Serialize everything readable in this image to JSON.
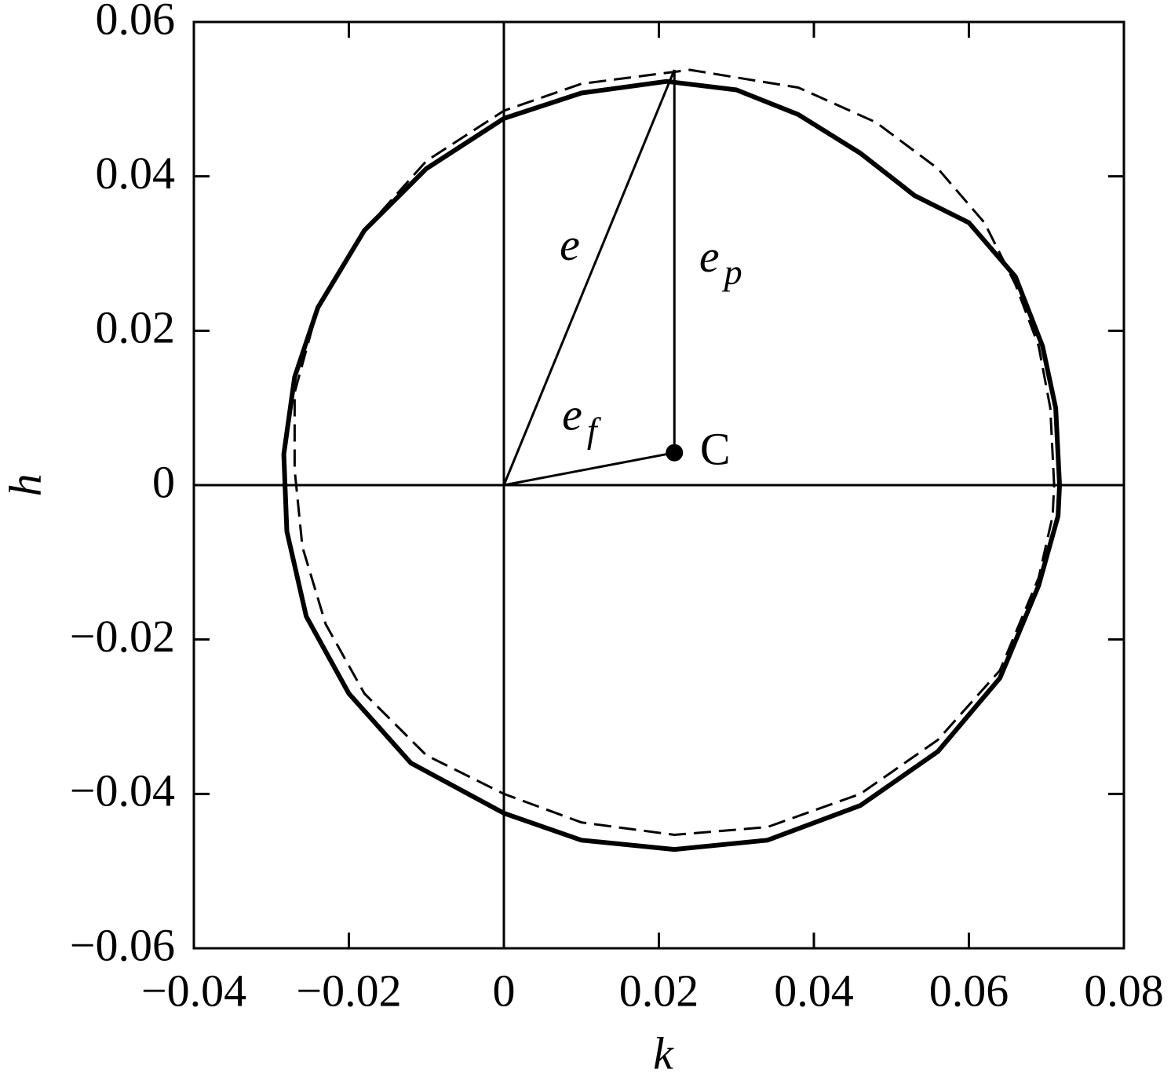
{
  "chart_data": {
    "type": "line",
    "xlabel": "k",
    "ylabel": "h",
    "xlim": [
      -0.04,
      0.08
    ],
    "ylim": [
      -0.06,
      0.06
    ],
    "xticks": [
      {
        "value": -0.04,
        "label": "−0.04"
      },
      {
        "value": -0.02,
        "label": "−0.02"
      },
      0,
      0.02,
      0.04,
      0.06,
      0.08
    ],
    "yticks": [
      {
        "value": -0.06,
        "label": "−0.06"
      },
      {
        "value": -0.04,
        "label": "−0.04"
      },
      {
        "value": -0.02,
        "label": "−0.02"
      },
      0,
      0.02,
      0.04,
      0.06
    ],
    "zero_lines": true,
    "series": [
      {
        "color": "#000000",
        "style": "solid",
        "x": [
          0.0717,
          0.0712,
          0.0695,
          0.066,
          0.06,
          0.053,
          0.046,
          0.038,
          0.03,
          0.021,
          0.01,
          0.0,
          -0.01,
          -0.018,
          -0.024,
          -0.027,
          -0.0284,
          -0.028,
          -0.0255,
          -0.02,
          -0.012,
          0.0,
          0.01,
          0.022,
          0.034,
          0.046,
          0.056,
          0.064,
          0.069,
          0.0715,
          0.0717
        ],
        "values": [
          0.0,
          0.01,
          0.018,
          0.027,
          0.034,
          0.0375,
          0.043,
          0.048,
          0.0512,
          0.0523,
          0.0508,
          0.0475,
          0.041,
          0.033,
          0.023,
          0.014,
          0.004,
          -0.006,
          -0.017,
          -0.027,
          -0.036,
          -0.0425,
          -0.046,
          -0.0472,
          -0.046,
          -0.0415,
          -0.0345,
          -0.025,
          -0.013,
          -0.004,
          0.0
        ]
      },
      {
        "color": "#000000",
        "style": "dashed",
        "x": [
          0.071,
          0.0705,
          0.069,
          0.066,
          0.062,
          0.056,
          0.048,
          0.038,
          0.024,
          0.01,
          0.0,
          -0.01,
          -0.018,
          -0.024,
          -0.027,
          -0.027,
          -0.026,
          -0.023,
          -0.018,
          -0.01,
          0.0,
          0.01,
          0.022,
          0.034,
          0.046,
          0.056,
          0.064,
          0.069,
          0.0708,
          0.071
        ],
        "values": [
          0.0,
          0.01,
          0.018,
          0.026,
          0.034,
          0.041,
          0.047,
          0.0515,
          0.0538,
          0.052,
          0.0485,
          0.042,
          0.033,
          0.023,
          0.012,
          0.002,
          -0.008,
          -0.018,
          -0.027,
          -0.035,
          -0.04,
          -0.0437,
          -0.0453,
          -0.0443,
          -0.04,
          -0.033,
          -0.024,
          -0.012,
          -0.004,
          0.0
        ]
      }
    ],
    "segments": [
      {
        "x": [
          0,
          0.022
        ],
        "y": [
          0,
          0.0538
        ]
      },
      {
        "x": [
          0.022,
          0.022
        ],
        "y": [
          0.0538,
          0.0042
        ]
      },
      {
        "x": [
          0,
          0.022
        ],
        "y": [
          0,
          0.0042
        ]
      }
    ],
    "points": [
      {
        "x": 0.022,
        "y": 0.0042
      }
    ],
    "annotations": [
      {
        "text": "e",
        "x": 0.0072,
        "y": 0.0305
      },
      {
        "text": "e",
        "sub": "p",
        "x": 0.0252,
        "y": 0.029
      },
      {
        "text": "e",
        "sub": "f",
        "x": 0.0075,
        "y": 0.0085
      },
      {
        "text": "C",
        "x": 0.0253,
        "y": 0.004
      }
    ]
  }
}
